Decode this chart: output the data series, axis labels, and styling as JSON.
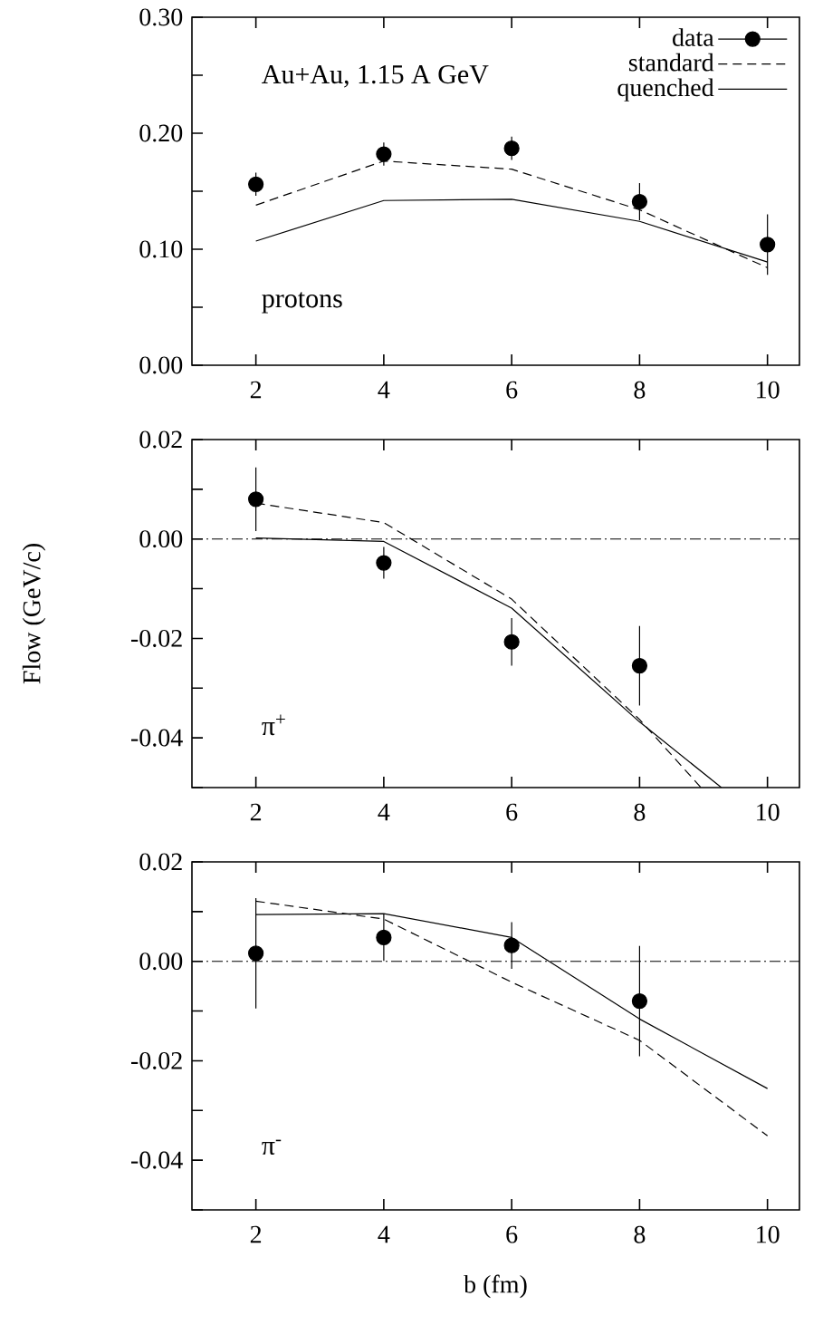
{
  "chart_data": [
    {
      "type": "line",
      "x": [
        2,
        4,
        6,
        8,
        10
      ],
      "xlim": [
        1,
        10.5
      ],
      "xticks": [
        2,
        4,
        6,
        8,
        10
      ],
      "ylim": [
        0,
        0.3
      ],
      "yticks": [
        {
          "value": 0,
          "label": "0.00"
        },
        {
          "value": 0.05,
          "label": null
        },
        {
          "value": 0.1,
          "label": "0.10"
        },
        {
          "value": 0.15,
          "label": null
        },
        {
          "value": 0.2,
          "label": "0.20"
        },
        {
          "value": 0.25,
          "label": null
        },
        {
          "value": 0.3,
          "label": "0.30"
        }
      ],
      "legend": "top right",
      "annotations": [
        "Au+Au, 1.15 A GeV",
        "protons"
      ],
      "series": [
        {
          "name": "data",
          "type": "scatter",
          "marker": "circle",
          "color": "#000000",
          "values": [
            0.156,
            0.182,
            0.187,
            0.141,
            0.104
          ],
          "errors": [
            0.01,
            0.01,
            0.01,
            0.016,
            0.026
          ]
        },
        {
          "name": "standard",
          "line_style": "dashed",
          "color": "#000000",
          "values": [
            0.138,
            0.176,
            0.169,
            0.134,
            0.084
          ]
        },
        {
          "name": "quenched",
          "line_style": "solid",
          "color": "#000000",
          "values": [
            0.107,
            0.142,
            0.143,
            0.124,
            0.089
          ]
        }
      ]
    },
    {
      "type": "line",
      "xlim": [
        1,
        10.5
      ],
      "xticks": [
        2,
        4,
        6,
        8,
        10
      ],
      "ylim": [
        -0.05,
        0.02
      ],
      "yticks": [
        {
          "value": -0.05,
          "label": null
        },
        {
          "value": -0.04,
          "label": "-0.04"
        },
        {
          "value": -0.03,
          "label": null
        },
        {
          "value": -0.02,
          "label": "-0.02"
        },
        {
          "value": -0.01,
          "label": null
        },
        {
          "value": 0,
          "label": "0.00"
        },
        {
          "value": 0.01,
          "label": null
        },
        {
          "value": 0.02,
          "label": "0.02"
        }
      ],
      "ylabel": "Flow (GeV/c)",
      "annotations": [
        "π$^{+}$"
      ],
      "ref_lines": [
        {
          "axis": "y",
          "value": 0,
          "line_style": "dashdot",
          "color": "#000000"
        }
      ],
      "series": [
        {
          "type": "scatter",
          "marker": "circle",
          "color": "#000000",
          "values": [
            0.008,
            -0.0048,
            -0.0207,
            -0.0255
          ],
          "x": [
            2,
            4,
            6,
            8
          ],
          "errors": [
            0.0064,
            0.0032,
            0.0048,
            0.008
          ]
        },
        {
          "line_style": "dashed",
          "color": "#000000",
          "x": [
            2,
            4,
            6,
            8,
            8.96
          ],
          "values": [
            0.0072,
            0.0033,
            -0.0121,
            -0.0363,
            -0.05
          ]
        },
        {
          "line_style": "solid",
          "color": "#000000",
          "x": [
            2,
            4,
            6,
            8,
            9.28
          ],
          "values": [
            0.0002,
            -0.0005,
            -0.0139,
            -0.0368,
            -0.05
          ]
        }
      ]
    },
    {
      "type": "line",
      "x": [
        2,
        4,
        6,
        8,
        10
      ],
      "xlim": [
        1,
        10.5
      ],
      "xticks": [
        2,
        4,
        6,
        8,
        10
      ],
      "ylim": [
        -0.05,
        0.02
      ],
      "yticks": [
        {
          "value": -0.05,
          "label": null
        },
        {
          "value": -0.04,
          "label": "-0.04"
        },
        {
          "value": -0.03,
          "label": null
        },
        {
          "value": -0.02,
          "label": "-0.02"
        },
        {
          "value": -0.01,
          "label": null
        },
        {
          "value": 0,
          "label": "0.00"
        },
        {
          "value": 0.01,
          "label": null
        },
        {
          "value": 0.02,
          "label": "0.02"
        }
      ],
      "xlabel": "b (fm)",
      "annotations": [
        "π$^{-}$"
      ],
      "ref_lines": [
        {
          "axis": "y",
          "value": 0,
          "line_style": "dashdot",
          "color": "#000000"
        }
      ],
      "series": [
        {
          "type": "scatter",
          "marker": "circle",
          "color": "#000000",
          "values": [
            0.0016,
            0.0048,
            0.0032,
            -0.008
          ],
          "x": [
            2,
            4,
            6,
            8
          ],
          "errors": [
            0.0111,
            0.0047,
            0.0047,
            0.0111
          ]
        },
        {
          "line_style": "dashed",
          "color": "#000000",
          "values": [
            0.0121,
            0.0085,
            -0.0042,
            -0.0159,
            -0.0351
          ]
        },
        {
          "line_style": "solid",
          "color": "#000000",
          "values": [
            0.0094,
            0.0096,
            0.0048,
            -0.0116,
            -0.0256
          ]
        }
      ]
    }
  ]
}
